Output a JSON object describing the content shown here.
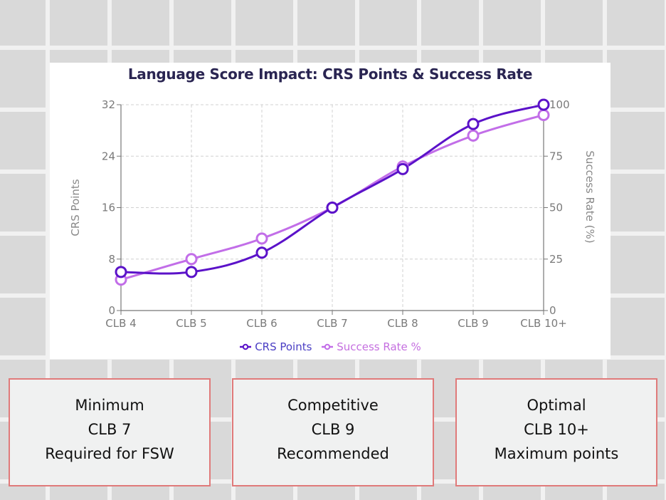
{
  "chart": {
    "title": "Language Score Impact: CRS Points & Success Rate",
    "left_axis_label": "CRS Points",
    "right_axis_label": "Success Rate (%)",
    "left_ticks": [
      "0",
      "8",
      "16",
      "24",
      "32"
    ],
    "right_ticks": [
      "0",
      "25",
      "50",
      "75",
      "100"
    ],
    "x_ticks": [
      "CLB 4",
      "CLB 5",
      "CLB 6",
      "CLB 7",
      "CLB 8",
      "CLB 9",
      "CLB 10+"
    ],
    "legend": [
      {
        "label": "CRS Points",
        "color": "#5b12c9"
      },
      {
        "label": "Success Rate %",
        "color": "#c26ee8"
      }
    ]
  },
  "chart_data": {
    "type": "line",
    "title": "Language Score Impact: CRS Points & Success Rate",
    "categories": [
      "CLB 4",
      "CLB 5",
      "CLB 6",
      "CLB 7",
      "CLB 8",
      "CLB 9",
      "CLB 10+"
    ],
    "series": [
      {
        "name": "CRS Points",
        "axis": "left",
        "color": "#5b12c9",
        "values": [
          6,
          6,
          9,
          16,
          22,
          29,
          32
        ]
      },
      {
        "name": "Success Rate %",
        "axis": "right",
        "color": "#c26ee8",
        "values": [
          15,
          25,
          35,
          50,
          70,
          85,
          95
        ]
      }
    ],
    "xlabel": "",
    "ylabel": "CRS Points",
    "y2label": "Success Rate (%)",
    "ylim": [
      0,
      32
    ],
    "y2lim": [
      0,
      100
    ],
    "grid": true,
    "legend_position": "bottom"
  },
  "cards": [
    {
      "line1": "Minimum",
      "line2": "CLB 7",
      "line3": "Required for FSW"
    },
    {
      "line1": "Competitive",
      "line2": "CLB 9",
      "line3": "Recommended"
    },
    {
      "line1": "Optimal",
      "line2": "CLB 10+",
      "line3": "Maximum points"
    }
  ]
}
